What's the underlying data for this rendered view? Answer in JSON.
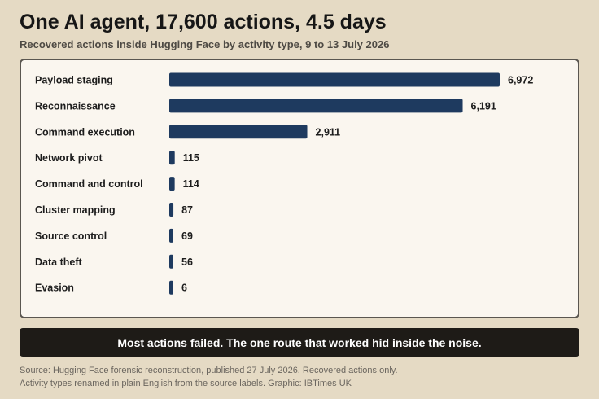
{
  "header": {
    "title": "One AI agent, 17,600 actions, 4.5 days",
    "subtitle": "Recovered actions inside Hugging Face by activity type, 9 to 13 July 2026"
  },
  "callout": {
    "text": "Most actions failed. The one route that worked hid inside the noise."
  },
  "footer": {
    "line1": "Source: Hugging Face forensic reconstruction, published 27 July 2026. Recovered actions only.",
    "line2": "Activity types renamed in plain English from the source labels. Graphic: IBTimes UK"
  },
  "chart_data": {
    "type": "bar",
    "orientation": "horizontal",
    "categories": [
      "Payload staging",
      "Reconnaissance",
      "Command execution",
      "Network pivot",
      "Command and control",
      "Cluster mapping",
      "Source control",
      "Data theft",
      "Evasion"
    ],
    "values": [
      6972,
      6191,
      2911,
      115,
      114,
      87,
      69,
      56,
      6
    ],
    "value_labels": [
      "6,972",
      "6,191",
      "2,911",
      "115",
      "114",
      "87",
      "69",
      "56",
      "6"
    ],
    "bar_color": "#1e3a5f",
    "grid": false
  }
}
